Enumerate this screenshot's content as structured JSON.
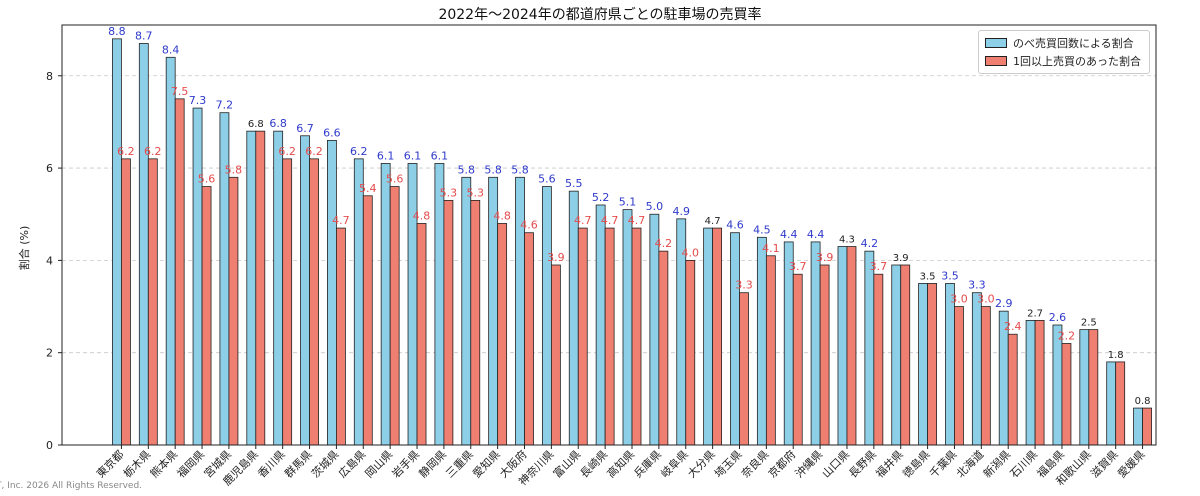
{
  "copyright": "T, Inc. 2026 All Rights Reserved.",
  "colors": {
    "series1": "#8ecfe8",
    "series2": "#ef7f71",
    "label1": "#2f3acb",
    "label2": "#e54b4b",
    "label_same": "#222222"
  },
  "chart_data": {
    "type": "bar",
    "title": "2022年〜2024年の都道府県ごとの駐車場の売買率",
    "ylabel": "割合 (%)",
    "xlabel": "",
    "ylim": [
      0,
      9.1
    ],
    "yticks": [
      0,
      2,
      4,
      6,
      8
    ],
    "grid": true,
    "legend_position": "top-right",
    "categories": [
      "東京都",
      "栃木県",
      "熊本県",
      "福岡県",
      "宮城県",
      "鹿児島県",
      "香川県",
      "群馬県",
      "茨城県",
      "広島県",
      "岡山県",
      "岩手県",
      "静岡県",
      "三重県",
      "愛知県",
      "大阪府",
      "神奈川県",
      "富山県",
      "長崎県",
      "高知県",
      "兵庫県",
      "岐阜県",
      "大分県",
      "埼玉県",
      "奈良県",
      "京都府",
      "沖縄県",
      "山口県",
      "長野県",
      "福井県",
      "徳島県",
      "千葉県",
      "北海道",
      "新潟県",
      "石川県",
      "福島県",
      "和歌山県",
      "滋賀県",
      "愛媛県"
    ],
    "series": [
      {
        "name": "のべ売買回数による割合",
        "values": [
          8.8,
          8.7,
          8.4,
          7.3,
          7.2,
          6.8,
          6.8,
          6.7,
          6.6,
          6.2,
          6.1,
          6.1,
          6.1,
          5.8,
          5.8,
          5.8,
          5.6,
          5.5,
          5.2,
          5.1,
          5.0,
          4.9,
          4.7,
          4.6,
          4.5,
          4.4,
          4.4,
          4.3,
          4.2,
          3.9,
          3.5,
          3.5,
          3.3,
          2.9,
          2.7,
          2.6,
          2.5,
          1.8,
          0.8
        ]
      },
      {
        "name": "1回以上売買のあった割合",
        "values": [
          6.2,
          6.2,
          7.5,
          5.6,
          5.8,
          6.8,
          6.2,
          6.2,
          4.7,
          5.4,
          5.6,
          4.8,
          5.3,
          5.3,
          4.8,
          4.6,
          3.9,
          4.7,
          4.7,
          4.7,
          4.2,
          4.0,
          4.7,
          3.3,
          4.1,
          3.7,
          3.9,
          4.3,
          3.7,
          3.9,
          3.5,
          3.0,
          3.0,
          2.4,
          2.7,
          2.2,
          2.5,
          1.8,
          0.8
        ]
      }
    ]
  }
}
